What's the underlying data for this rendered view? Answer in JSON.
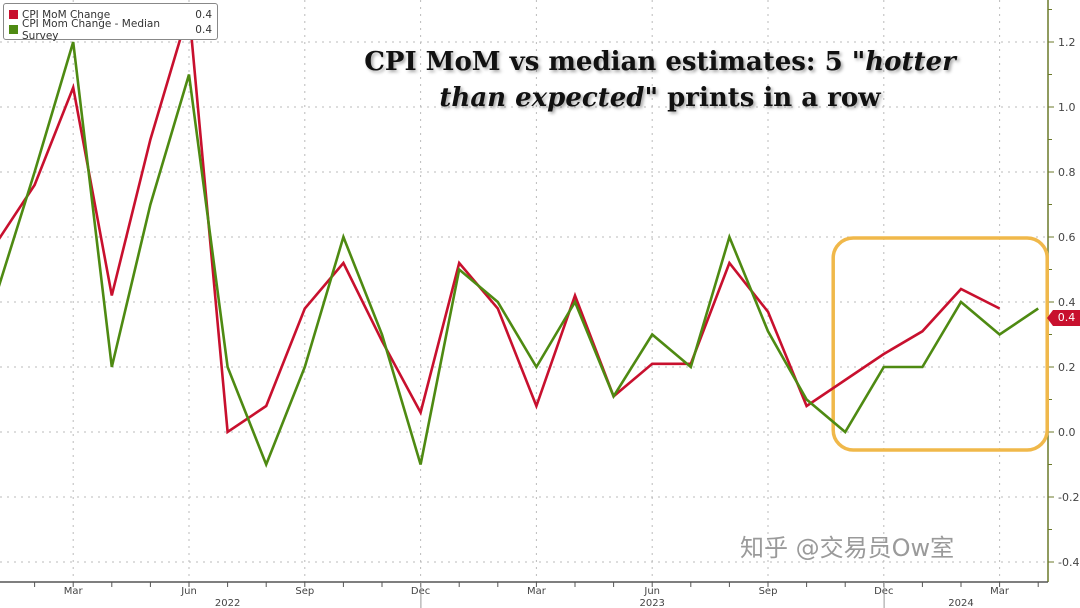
{
  "legend": {
    "items": [
      {
        "name": "CPI MoM Change",
        "last": "0.4",
        "color": "#c8102e"
      },
      {
        "name": "CPI Mom Change - Median Survey",
        "last": "0.4",
        "color": "#4e8a12"
      }
    ]
  },
  "title": {
    "part1": "CPI MoM vs median estimates: 5 ",
    "italic1": "\"hotter than expected",
    "part2": "\" prints in a row"
  },
  "watermark": "知乎 @交易员Ow室",
  "last_value_tag": "0.4",
  "highlight_box_color": "#f0b84a",
  "chart_data": {
    "type": "line",
    "x": [
      "2022-01",
      "2022-02",
      "2022-03",
      "2022-04",
      "2022-05",
      "2022-06",
      "2022-07",
      "2022-08",
      "2022-09",
      "2022-10",
      "2022-11",
      "2022-12",
      "2023-01",
      "2023-02",
      "2023-03",
      "2023-04",
      "2023-05",
      "2023-06",
      "2023-07",
      "2023-08",
      "2023-09",
      "2023-10",
      "2023-11",
      "2023-12",
      "2024-01",
      "2024-02",
      "2024-03",
      "2024-04"
    ],
    "series": [
      {
        "name": "CPI MoM Change",
        "color": "#c8102e",
        "values": [
          0.58,
          0.76,
          1.06,
          0.42,
          0.9,
          1.3,
          0.0,
          0.08,
          0.38,
          0.52,
          0.28,
          0.06,
          0.52,
          0.38,
          0.08,
          0.42,
          0.11,
          0.21,
          0.21,
          0.52,
          0.37,
          0.08,
          0.16,
          0.24,
          0.31,
          0.44,
          0.38,
          null
        ]
      },
      {
        "name": "CPI Mom Change - Median Survey",
        "color": "#4e8a12",
        "values": [
          0.42,
          0.8,
          1.2,
          0.2,
          0.7,
          1.1,
          0.2,
          -0.1,
          0.2,
          0.6,
          0.3,
          -0.1,
          0.5,
          0.4,
          0.2,
          0.4,
          0.11,
          0.3,
          0.2,
          0.6,
          0.31,
          0.1,
          0.0,
          0.2,
          0.2,
          0.4,
          0.3,
          0.38
        ]
      }
    ],
    "x_tick_labels": [
      {
        "month": "2022-03",
        "label": "Mar"
      },
      {
        "month": "2022-06",
        "label": "Jun"
      },
      {
        "month": "2022-09",
        "label": "Sep"
      },
      {
        "month": "2022-12",
        "label": "Dec"
      },
      {
        "month": "2023-03",
        "label": "Mar"
      },
      {
        "month": "2023-06",
        "label": "Jun"
      },
      {
        "month": "2023-09",
        "label": "Sep"
      },
      {
        "month": "2023-12",
        "label": "Dec"
      },
      {
        "month": "2024-03",
        "label": "Mar"
      }
    ],
    "year_labels": [
      {
        "label": "2022",
        "center_month": "2022-07"
      },
      {
        "label": "2023",
        "center_month": "2023-06"
      },
      {
        "label": "2024",
        "center_month": "2024-02"
      }
    ],
    "y_ticks": [
      "-0.4",
      "-0.2",
      "0.0",
      "0.2",
      "0.4",
      "0.6",
      "0.8",
      "1.0",
      "1.2"
    ],
    "ylim": [
      -0.45,
      1.3
    ],
    "y_axis_side": "right",
    "grid": true,
    "legend_position": "top-left",
    "highlight_range": [
      "2023-11",
      "2024-04"
    ]
  }
}
